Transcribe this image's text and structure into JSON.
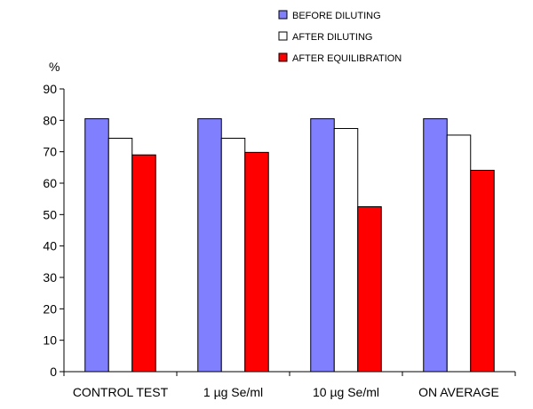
{
  "chart_data": {
    "type": "bar",
    "title": "",
    "xlabel": "",
    "ylabel": "%",
    "ylim": [
      0,
      90
    ],
    "yticks": [
      0,
      10,
      20,
      30,
      40,
      50,
      60,
      70,
      80,
      90
    ],
    "grid": false,
    "legend_position": "top-right",
    "categories": [
      "CONTROL TEST",
      "1 µg Se/ml",
      "10 µg Se/ml",
      "ON AVERAGE"
    ],
    "series": [
      {
        "name": "BEFORE DILUTING",
        "color": "#8080ff",
        "values": [
          80.5,
          80.5,
          80.5,
          80.5
        ]
      },
      {
        "name": "AFTER DILUTING",
        "color": "#ffffff",
        "values": [
          74.3,
          74.3,
          77.4,
          75.3
        ]
      },
      {
        "name": "AFTER EQUILIBRATION",
        "color": "#ff0000",
        "values": [
          69.0,
          69.8,
          52.5,
          64.1
        ]
      }
    ]
  }
}
